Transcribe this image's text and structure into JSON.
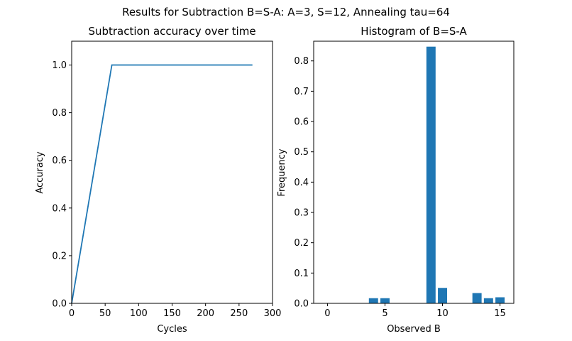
{
  "figure": {
    "suptitle": "Results for Subtraction B=S-A: A=3, S=12, Annealing tau=64"
  },
  "colors": {
    "series": "#1f77b4",
    "axis": "#000000",
    "background": "#ffffff"
  },
  "chart_data": [
    {
      "type": "line",
      "title": "Subtraction accuracy over time",
      "xlabel": "Cycles",
      "ylabel": "Accuracy",
      "xlim": [
        0,
        300
      ],
      "ylim": [
        0,
        1.1
      ],
      "xticks": [
        0,
        50,
        100,
        150,
        200,
        250,
        300
      ],
      "yticks": [
        0.0,
        0.2,
        0.4,
        0.6,
        0.8,
        1.0
      ],
      "xtick_labels": [
        "0",
        "50",
        "100",
        "150",
        "200",
        "250",
        "300"
      ],
      "ytick_labels": [
        "0.0",
        "0.2",
        "0.4",
        "0.6",
        "0.8",
        "1.0"
      ],
      "grid": false,
      "series": [
        {
          "x": [
            0,
            60,
            270
          ],
          "y": [
            0.0,
            1.0,
            1.0
          ]
        }
      ]
    },
    {
      "type": "bar",
      "title": "Histogram of B=S-A",
      "xlabel": "Observed B",
      "ylabel": "Frequency",
      "xlim": [
        -1.2,
        16.2
      ],
      "ylim": [
        0,
        0.865
      ],
      "xticks": [
        0,
        5,
        10,
        15
      ],
      "yticks": [
        0.0,
        0.1,
        0.2,
        0.3,
        0.4,
        0.5,
        0.6,
        0.7,
        0.8
      ],
      "xtick_labels": [
        "0",
        "5",
        "10",
        "15"
      ],
      "ytick_labels": [
        "0.0",
        "0.1",
        "0.2",
        "0.3",
        "0.4",
        "0.5",
        "0.6",
        "0.7",
        "0.8"
      ],
      "grid": false,
      "categories": [
        4,
        5,
        9,
        10,
        13,
        14,
        15
      ],
      "values": [
        0.017,
        0.017,
        0.847,
        0.051,
        0.034,
        0.017,
        0.02
      ]
    }
  ]
}
